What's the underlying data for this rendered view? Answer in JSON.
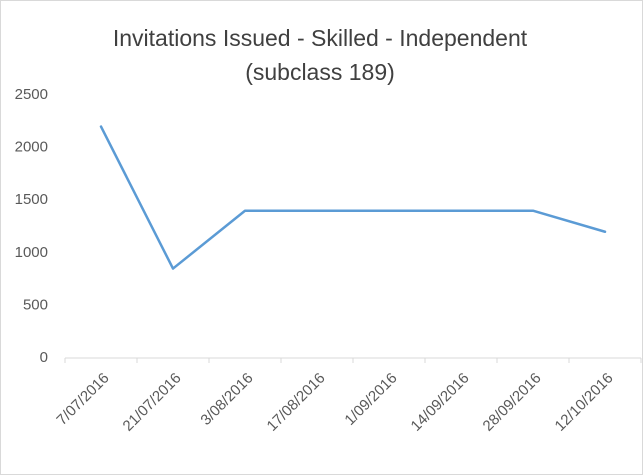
{
  "chart_data": {
    "type": "line",
    "title": [
      "Invitations Issued - Skilled - Independent",
      "(subclass 189)"
    ],
    "categories": [
      "7/07/2016",
      "21/07/2016",
      "3/08/2016",
      "17/08/2016",
      "1/09/2016",
      "14/09/2016",
      "28/09/2016",
      "12/10/2016"
    ],
    "values": [
      2200,
      850,
      1400,
      1400,
      1400,
      1400,
      1400,
      1200
    ],
    "color": "#5b9bd5",
    "ylim": [
      0,
      2500
    ],
    "yticks": [
      0,
      500,
      1000,
      1500,
      2000,
      2500
    ],
    "grid": false
  }
}
